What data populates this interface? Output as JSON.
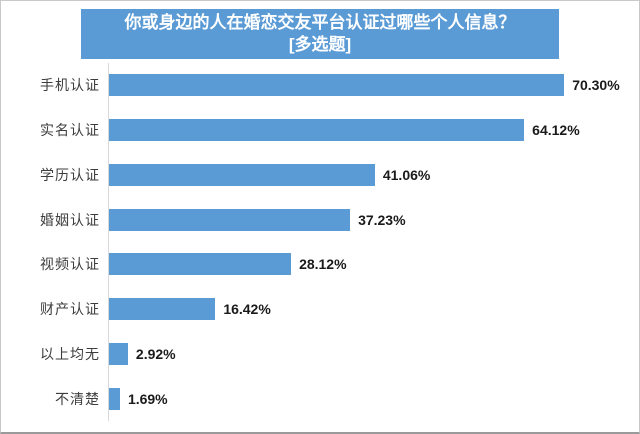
{
  "title_box": {
    "title": "你或身边的人在婚恋交友平台认证过哪些个人信息？",
    "subtitle": "[多选题]",
    "bg_color": "#5B9BD5",
    "text_color": "#FFFFFF"
  },
  "chart_data": {
    "type": "bar",
    "orientation": "horizontal",
    "title": "你或身边的人在婚恋交友平台认证过哪些个人信息？",
    "subtitle": "[多选题]",
    "categories": [
      "手机认证",
      "实名认证",
      "学历认证",
      "婚姻认证",
      "视频认证",
      "财产认证",
      "以上均无",
      "不清楚"
    ],
    "values": [
      70.3,
      64.12,
      41.06,
      37.23,
      28.12,
      16.42,
      2.92,
      1.69
    ],
    "value_labels": [
      "70.30%",
      "64.12%",
      "41.06%",
      "37.23%",
      "28.12%",
      "16.42%",
      "2.92%",
      "1.69%"
    ],
    "xlim": [
      0,
      80
    ],
    "xlabel": "",
    "ylabel": "",
    "legend": "none",
    "grid": "off",
    "bar_color": "#5B9BD5",
    "axis_line_color": "#D9D9D9"
  }
}
